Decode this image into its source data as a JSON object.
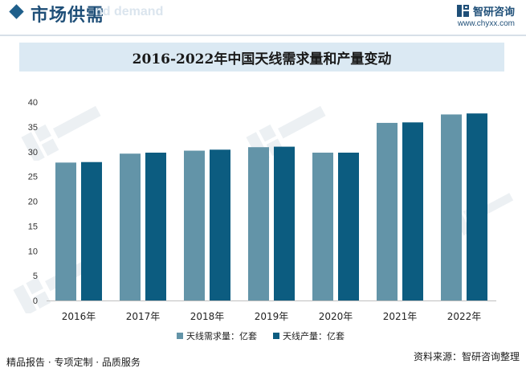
{
  "header": {
    "section_title": "市场供需",
    "ghost_text": "nd demand",
    "logo_name": "智研咨询",
    "logo_url": "www.chyxx.com"
  },
  "colors": {
    "demand": "#6394a8",
    "production": "#0c5c80",
    "header_blue": "#1f4f78",
    "title_band": "#dbe9f3"
  },
  "chart_data": {
    "type": "bar",
    "title": "2016-2022年中国天线需求量和产量变动",
    "categories": [
      "2016年",
      "2017年",
      "2018年",
      "2019年",
      "2020年",
      "2021年",
      "2022年"
    ],
    "series": [
      {
        "name": "天线需求量：亿套",
        "values": [
          27.8,
          29.6,
          30.2,
          30.9,
          29.8,
          35.8,
          37.5
        ]
      },
      {
        "name": "天线产量：亿套",
        "values": [
          27.9,
          29.8,
          30.4,
          31.0,
          29.8,
          35.9,
          37.7
        ]
      }
    ],
    "yticks": [
      0,
      5,
      10,
      15,
      20,
      25,
      30,
      35,
      40
    ],
    "ylim": [
      0,
      40
    ],
    "legend": "bottom-center",
    "grid": false
  },
  "footer": {
    "left": "精品报告 · 专项定制 · 品质服务",
    "right": "资料来源：智研咨询整理"
  }
}
